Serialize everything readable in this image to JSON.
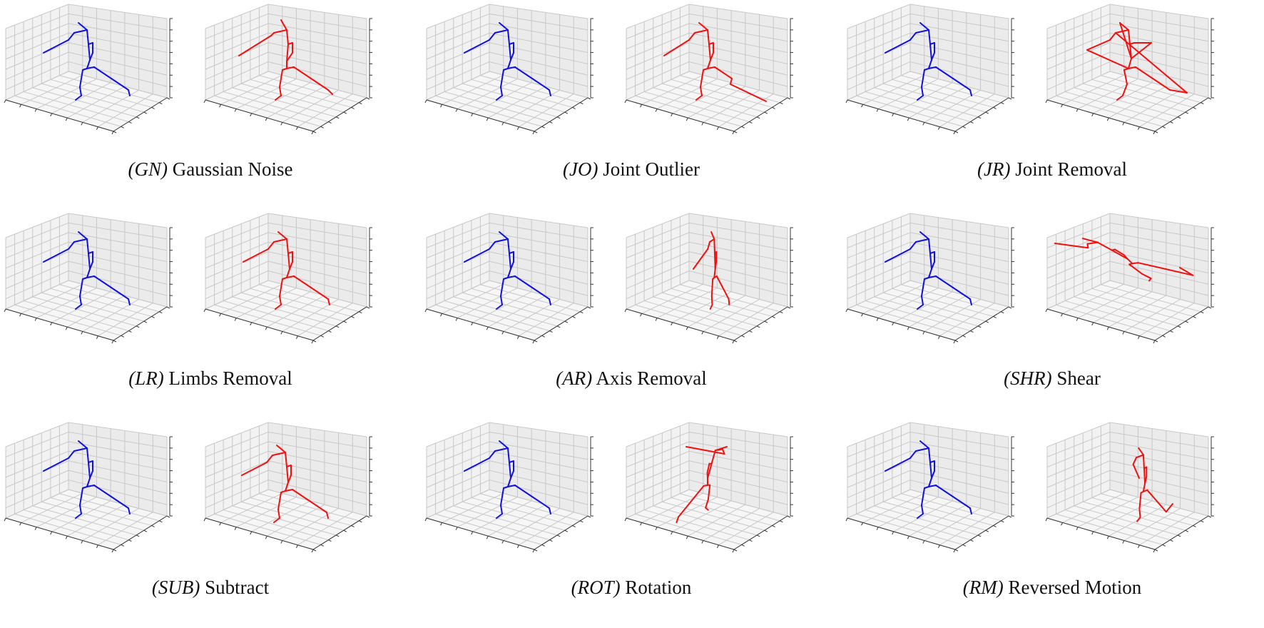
{
  "figure": {
    "colors": {
      "original": "#1010e0",
      "augmented": "#f01010",
      "grid": "#c8c8c8",
      "pane": "#f2f2f2"
    },
    "panels": [
      {
        "id": "gn",
        "abbr": "(GN)",
        "name": "Gaussian Noise",
        "aug": "noise"
      },
      {
        "id": "jo",
        "abbr": "(JO)",
        "name": "Joint Outlier",
        "aug": "outlier"
      },
      {
        "id": "jr",
        "abbr": "(JR)",
        "name": "Joint Removal",
        "aug": "jremoval"
      },
      {
        "id": "lr",
        "abbr": "(LR)",
        "name": "Limbs Removal",
        "aug": "limbs"
      },
      {
        "id": "ar",
        "abbr": "(AR)",
        "name": "Axis Removal",
        "aug": "axis"
      },
      {
        "id": "shr",
        "abbr": "(SHR)",
        "name": "Shear",
        "aug": "shear"
      },
      {
        "id": "sub",
        "abbr": "(SUB)",
        "name": "Subtract",
        "aug": "subtract"
      },
      {
        "id": "rot",
        "abbr": "(ROT)",
        "name": "Rotation",
        "aug": "rotation"
      },
      {
        "id": "rm",
        "abbr": "(RM)",
        "name": "Reversed Motion",
        "aug": "reversed"
      }
    ]
  }
}
